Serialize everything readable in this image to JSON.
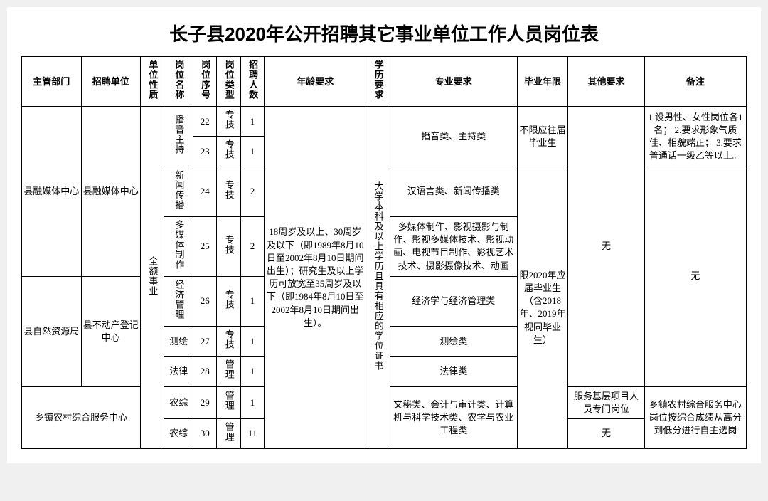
{
  "title": "长子县2020年公开招聘其它事业单位工作人员岗位表",
  "headers": {
    "dept": "主管部门",
    "unit": "招聘单位",
    "nature": "单位性质",
    "pname": "岗位名称",
    "seq": "岗位序号",
    "ptype": "岗位类型",
    "count": "招聘人数",
    "age": "年龄要求",
    "edu": "学历要求",
    "major": "专业要求",
    "grad": "毕业年限",
    "other": "其他要求",
    "note": "备注"
  },
  "shared": {
    "nature": "全额事业",
    "age": "18周岁及以上、30周岁及以下（即1989年8月10日至2002年8月10日期间出生）；研究生及以上学历可放宽至35周岁及以下（即1984年8月10日至2002年8月10日期间出生）。",
    "edu": "大学本科及以上学历且具有相应的学位证书",
    "grad1": "不限应往届毕业生",
    "grad2": "限2020年应届毕业生（含2018年、2019年视同毕业生）",
    "other_none": "无",
    "other_basic": "服务基层项目人员专门岗位",
    "note_media_host": "1.设男性、女性岗位各1名；\n2.要求形象气质佳、相貌端正；\n3.要求普通话一级乙等以上。",
    "note_none": "无",
    "note_rural": "乡镇农村综合服务中心岗位按综合成绩从高分到低分进行自主选岗"
  },
  "dept1": "县融媒体中心",
  "unit1": "县融媒体中心",
  "dept2": "县自然资源局",
  "unit2": "县不动产登记中心",
  "dept3": "乡镇农村综合服务中心",
  "rows": [
    {
      "pname": "播音主持",
      "seq": "22",
      "ptype": "专技",
      "count": "1",
      "major": "播音类、主持类"
    },
    {
      "seq": "23",
      "ptype": "专技",
      "count": "1"
    },
    {
      "pname": "新闻传播",
      "seq": "24",
      "ptype": "专技",
      "count": "2",
      "major": "汉语言类、新闻传播类"
    },
    {
      "pname": "多媒体制作",
      "seq": "25",
      "ptype": "专技",
      "count": "2",
      "major": "多媒体制作、影视摄影与制作、影视多媒体技术、影视动画、电视节目制作、影视艺术技术、摄影摄像技术、动画"
    },
    {
      "pname": "经济管理",
      "seq": "26",
      "ptype": "专技",
      "count": "1",
      "major": "经济学与经济管理类"
    },
    {
      "pname": "测绘",
      "seq": "27",
      "ptype": "专技",
      "count": "1",
      "major": "测绘类"
    },
    {
      "pname": "法律",
      "seq": "28",
      "ptype": "管理",
      "count": "1",
      "major": "法律类"
    },
    {
      "pname": "农综",
      "seq": "29",
      "ptype": "管理",
      "count": "1",
      "major": "文秘类、会计与审计类、计算机与科学技术类、农学与农业工程类"
    },
    {
      "pname": "农综",
      "seq": "30",
      "ptype": "管理",
      "count": "11"
    }
  ]
}
